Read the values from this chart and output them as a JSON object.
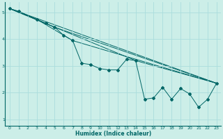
{
  "xlabel": "Humidex (Indice chaleur)",
  "bg_color": "#cceee8",
  "line_color": "#006666",
  "grid_color": "#aadddd",
  "xlim": [
    -0.5,
    23.5
  ],
  "ylim": [
    0.75,
    5.4
  ],
  "xticks": [
    0,
    1,
    2,
    3,
    4,
    5,
    6,
    7,
    8,
    9,
    10,
    11,
    12,
    13,
    14,
    15,
    16,
    17,
    18,
    19,
    20,
    21,
    22,
    23
  ],
  "yticks": [
    1,
    2,
    3,
    4,
    5
  ],
  "main_series": {
    "x": [
      0,
      1,
      3,
      4,
      5,
      6,
      7,
      8,
      9,
      10,
      11,
      12,
      13,
      14,
      15,
      16,
      17,
      18,
      19,
      20,
      21,
      22,
      23
    ],
    "y": [
      5.15,
      5.05,
      4.75,
      4.6,
      4.45,
      4.15,
      3.95,
      3.1,
      3.05,
      2.9,
      2.85,
      2.85,
      3.25,
      3.2,
      1.75,
      1.8,
      2.2,
      1.75,
      2.15,
      1.95,
      1.45,
      1.75,
      2.35
    ]
  },
  "envelope_lines": [
    {
      "x": [
        0,
        23
      ],
      "y": [
        5.15,
        2.35
      ]
    },
    {
      "x": [
        0,
        5,
        23
      ],
      "y": [
        5.15,
        4.45,
        2.35
      ]
    },
    {
      "x": [
        0,
        14,
        23
      ],
      "y": [
        5.15,
        3.2,
        2.35
      ]
    },
    {
      "x": [
        0,
        3,
        7,
        23
      ],
      "y": [
        5.15,
        4.75,
        3.95,
        2.35
      ]
    }
  ]
}
